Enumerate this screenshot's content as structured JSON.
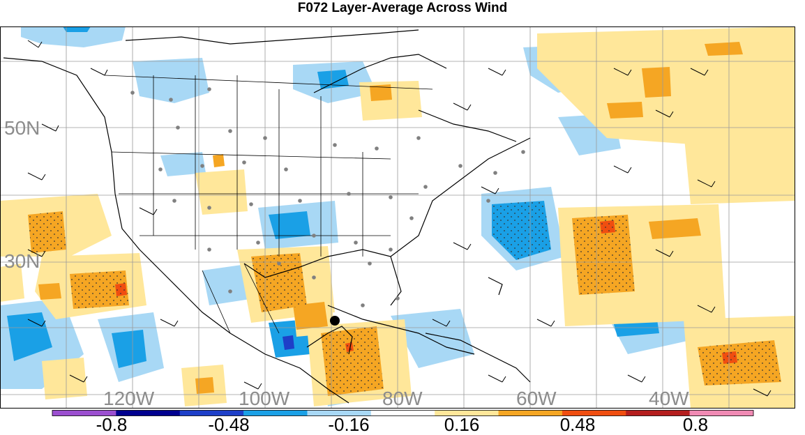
{
  "title": "F072 Layer-Average Across Wind",
  "map": {
    "lat_labels": [
      "50N",
      "30N"
    ],
    "lon_labels": [
      "120W",
      "100W",
      "80W",
      "60W",
      "40W"
    ],
    "colors": {
      "ocean": "#ffffff",
      "coast": "#000000",
      "grid": "#9a9a9a",
      "station": "#808080",
      "barb": "#000000"
    }
  },
  "colorbar": {
    "colors": [
      "#9b4fd0",
      "#00008f",
      "#1e3fc8",
      "#1aa0e6",
      "#a8d8f5",
      "#ffffff",
      "#ffe79a",
      "#f5a623",
      "#f04e10",
      "#b41e1e",
      "#f08ab4"
    ],
    "tick_labels": [
      "-0.8",
      "-0.48",
      "-0.16",
      "0.16",
      "0.48",
      "0.8"
    ]
  }
}
